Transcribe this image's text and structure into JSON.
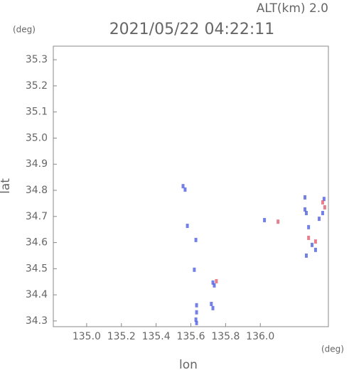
{
  "chart_data": {
    "type": "scatter",
    "title": "2021/05/22 04:22:11",
    "subtitle": "ALT(km) 2.0",
    "x_label": "lon",
    "y_label": "lat",
    "x_unit": "(deg)",
    "y_unit": "(deg)",
    "xlim": [
      134.808,
      136.392
    ],
    "ylim": [
      34.278,
      35.352
    ],
    "xticks": [
      {
        "value": 135.0,
        "label": "135.0"
      },
      135.2,
      135.4,
      135.6,
      135.8,
      {
        "value": 136.0,
        "label": "136.0"
      }
    ],
    "yticks": [
      34.3,
      34.4,
      34.5,
      34.6,
      34.7,
      34.8,
      34.9,
      {
        "value": 35.0,
        "label": "35.0"
      },
      35.1,
      35.2,
      35.3
    ],
    "series": [
      {
        "color": "#5060e0",
        "x": [
          135.555,
          135.567,
          135.58,
          135.629,
          135.62,
          135.727,
          135.735,
          135.718,
          135.727,
          135.633,
          135.629,
          135.633,
          135.633,
          136.024,
          136.257,
          136.265,
          136.278,
          136.298,
          136.318,
          136.265,
          136.359,
          136.367,
          136.257,
          136.339
        ],
        "values": [
          34.816,
          34.803,
          34.664,
          34.61,
          34.496,
          34.447,
          34.436,
          34.365,
          34.349,
          34.333,
          34.305,
          34.292,
          34.36,
          34.686,
          34.727,
          34.713,
          34.659,
          34.591,
          34.572,
          34.55,
          34.713,
          34.767,
          34.773,
          34.691
        ]
      },
      {
        "color": "#e06070",
        "x": [
          136.102,
          135.747,
          136.278,
          136.318,
          136.359,
          136.371
        ],
        "values": [
          34.68,
          34.452,
          34.618,
          34.604,
          34.754,
          34.735
        ]
      }
    ]
  }
}
